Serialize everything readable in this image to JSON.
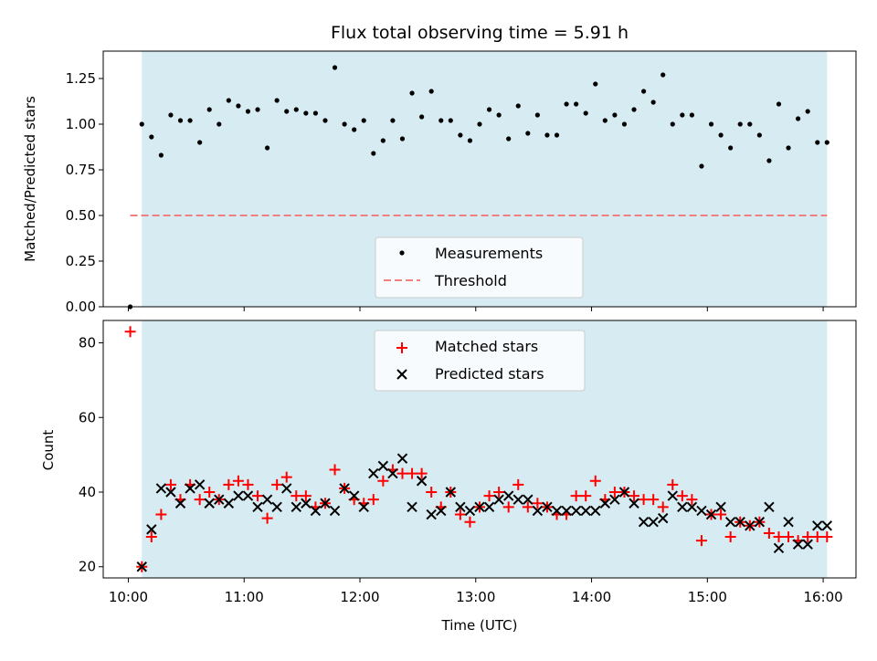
{
  "colors": {
    "shade": "#ADD8E6",
    "threshold": "#F08080",
    "matched": "#FF0000",
    "predicted": "#000000",
    "measurement": "#000000"
  },
  "chart_data": [
    {
      "type": "scatter",
      "title": "Flux total observing time = 5.91 h",
      "xlabel": "",
      "ylabel": "Matched/Predicted stars",
      "ylim": [
        0,
        1.4
      ],
      "yticks": [
        0.0,
        0.25,
        0.5,
        0.75,
        1.0,
        1.25
      ],
      "ytick_labels": [
        "0.00",
        "0.25",
        "0.50",
        "0.75",
        "1.00",
        "1.25"
      ],
      "xticks": [
        "10:00",
        "11:00",
        "12:00",
        "13:00",
        "14:00",
        "15:00",
        "16:00"
      ],
      "xlim": [
        "09:47",
        "16:17"
      ],
      "observing_window": [
        "10:07",
        "16:02"
      ],
      "legend": {
        "placement": "lower center",
        "entries": [
          "Measurements",
          "Threshold"
        ]
      },
      "threshold": {
        "name": "Threshold",
        "value": 0.5,
        "x_range": [
          "10:01",
          "16:02"
        ]
      },
      "series": [
        {
          "name": "Measurements",
          "x": [
            "10:01",
            "10:07",
            "10:12",
            "10:17",
            "10:22",
            "10:27",
            "10:32",
            "10:37",
            "10:42",
            "10:47",
            "10:52",
            "10:57",
            "11:02",
            "11:07",
            "11:12",
            "11:17",
            "11:22",
            "11:27",
            "11:32",
            "11:37",
            "11:42",
            "11:47",
            "11:52",
            "11:57",
            "12:02",
            "12:07",
            "12:12",
            "12:17",
            "12:22",
            "12:27",
            "12:32",
            "12:37",
            "12:42",
            "12:47",
            "12:52",
            "12:57",
            "13:02",
            "13:07",
            "13:12",
            "13:17",
            "13:22",
            "13:27",
            "13:32",
            "13:37",
            "13:42",
            "13:47",
            "13:52",
            "13:57",
            "14:02",
            "14:07",
            "14:12",
            "14:17",
            "14:22",
            "14:27",
            "14:32",
            "14:37",
            "14:42",
            "14:47",
            "14:52",
            "14:57",
            "15:02",
            "15:07",
            "15:12",
            "15:17",
            "15:22",
            "15:27",
            "15:32",
            "15:37",
            "15:42",
            "15:47",
            "15:52",
            "15:57",
            "16:02"
          ],
          "y": [
            0.0,
            1.0,
            0.93,
            0.83,
            1.05,
            1.02,
            1.02,
            0.9,
            1.08,
            1.0,
            1.13,
            1.1,
            1.07,
            1.08,
            0.87,
            1.13,
            1.07,
            1.08,
            1.06,
            1.06,
            1.02,
            1.31,
            1.0,
            0.97,
            1.02,
            0.84,
            0.91,
            1.02,
            0.92,
            1.17,
            1.04,
            1.18,
            1.02,
            1.02,
            0.94,
            0.91,
            1.0,
            1.08,
            1.05,
            0.92,
            1.1,
            0.95,
            1.05,
            0.94,
            0.94,
            1.11,
            1.11,
            1.06,
            1.22,
            1.02,
            1.05,
            1.0,
            1.08,
            1.18,
            1.12,
            1.27,
            1.0,
            1.05,
            1.05,
            0.77,
            1.0,
            0.94,
            0.87,
            1.0,
            1.0,
            0.94,
            0.8,
            1.11,
            0.87,
            1.03,
            1.07,
            0.9,
            0.9
          ]
        }
      ]
    },
    {
      "type": "scatter",
      "title": "",
      "xlabel": "Time (UTC)",
      "ylabel": "Count",
      "ylim": [
        17,
        86
      ],
      "yticks": [
        20,
        40,
        60,
        80
      ],
      "ytick_labels": [
        "20",
        "40",
        "60",
        "80"
      ],
      "xticks": [
        "10:00",
        "11:00",
        "12:00",
        "13:00",
        "14:00",
        "15:00",
        "16:00"
      ],
      "xlim": [
        "09:47",
        "16:17"
      ],
      "observing_window": [
        "10:07",
        "16:02"
      ],
      "legend": {
        "placement": "upper center",
        "entries": [
          "Matched stars",
          "Predicted stars"
        ]
      },
      "series": [
        {
          "name": "Matched stars",
          "marker": "plus",
          "x": [
            "10:01",
            "10:07",
            "10:12",
            "10:17",
            "10:22",
            "10:27",
            "10:32",
            "10:37",
            "10:42",
            "10:47",
            "10:52",
            "10:57",
            "11:02",
            "11:07",
            "11:12",
            "11:17",
            "11:22",
            "11:27",
            "11:32",
            "11:37",
            "11:42",
            "11:47",
            "11:52",
            "11:57",
            "12:02",
            "12:07",
            "12:12",
            "12:17",
            "12:22",
            "12:27",
            "12:32",
            "12:37",
            "12:42",
            "12:47",
            "12:52",
            "12:57",
            "13:02",
            "13:07",
            "13:12",
            "13:17",
            "13:22",
            "13:27",
            "13:32",
            "13:37",
            "13:42",
            "13:47",
            "13:52",
            "13:57",
            "14:02",
            "14:07",
            "14:12",
            "14:17",
            "14:22",
            "14:27",
            "14:32",
            "14:37",
            "14:42",
            "14:47",
            "14:52",
            "14:57",
            "15:02",
            "15:07",
            "15:12",
            "15:17",
            "15:22",
            "15:27",
            "15:32",
            "15:37",
            "15:42",
            "15:47",
            "15:52",
            "15:57",
            "16:02"
          ],
          "y": [
            83,
            20,
            28,
            34,
            42,
            38,
            42,
            38,
            40,
            38,
            42,
            43,
            42,
            39,
            33,
            42,
            44,
            39,
            39,
            36,
            37,
            46,
            41,
            38,
            37,
            38,
            43,
            46,
            45,
            45,
            45,
            40,
            36,
            40,
            34,
            32,
            36,
            39,
            40,
            36,
            42,
            36,
            37,
            36,
            34,
            34,
            39,
            39,
            43,
            38,
            40,
            40,
            39,
            38,
            38,
            36,
            42,
            39,
            38,
            27,
            34,
            34,
            28,
            32,
            31,
            32,
            29,
            28,
            28,
            27,
            28,
            28,
            28
          ]
        },
        {
          "name": "Predicted stars",
          "marker": "x",
          "x": [
            "10:07",
            "10:12",
            "10:17",
            "10:22",
            "10:27",
            "10:32",
            "10:37",
            "10:42",
            "10:47",
            "10:52",
            "10:57",
            "11:02",
            "11:07",
            "11:12",
            "11:17",
            "11:22",
            "11:27",
            "11:32",
            "11:37",
            "11:42",
            "11:47",
            "11:52",
            "11:57",
            "12:02",
            "12:07",
            "12:12",
            "12:17",
            "12:22",
            "12:27",
            "12:32",
            "12:37",
            "12:42",
            "12:47",
            "12:52",
            "12:57",
            "13:02",
            "13:07",
            "13:12",
            "13:17",
            "13:22",
            "13:27",
            "13:32",
            "13:37",
            "13:42",
            "13:47",
            "13:52",
            "13:57",
            "14:02",
            "14:07",
            "14:12",
            "14:17",
            "14:22",
            "14:27",
            "14:32",
            "14:37",
            "14:42",
            "14:47",
            "14:52",
            "14:57",
            "15:02",
            "15:07",
            "15:12",
            "15:17",
            "15:22",
            "15:27",
            "15:32",
            "15:37",
            "15:42",
            "15:47",
            "15:52",
            "15:57",
            "16:02"
          ],
          "y": [
            20,
            30,
            41,
            40,
            37,
            41,
            42,
            37,
            38,
            37,
            39,
            39,
            36,
            38,
            36,
            41,
            36,
            37,
            35,
            37,
            35,
            41,
            39,
            36,
            45,
            47,
            45,
            49,
            36,
            43,
            34,
            35,
            40,
            36,
            35,
            36,
            36,
            38,
            39,
            38,
            38,
            35,
            36,
            35,
            35,
            35,
            35,
            35,
            37,
            38,
            40,
            37,
            32,
            32,
            33,
            39,
            36,
            36,
            35,
            34,
            36,
            32,
            32,
            31,
            32,
            36,
            25,
            32,
            26,
            26,
            31,
            31
          ]
        }
      ]
    }
  ]
}
